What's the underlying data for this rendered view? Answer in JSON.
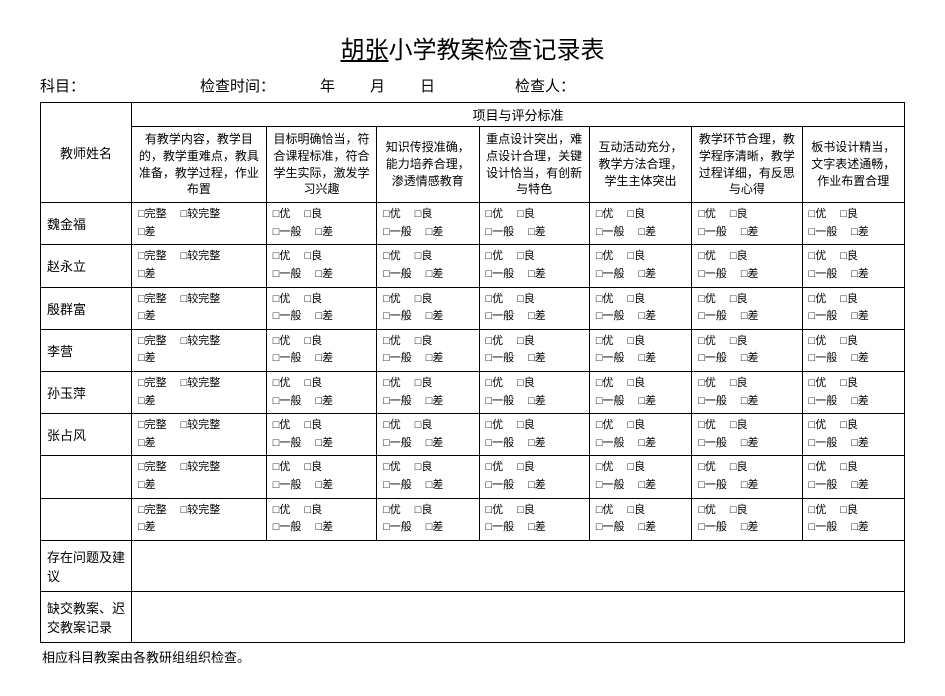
{
  "title_underlined": "胡张",
  "title_rest": "小学教案检查记录表",
  "header": {
    "subject_label": "科目：",
    "time_label": "检查时间：",
    "year_unit": "年",
    "month_unit": "月",
    "day_unit": "日",
    "inspector_label": "检查人："
  },
  "table": {
    "teacher_col_header": "教师姓名",
    "project_header": "项目与评分标准",
    "criteria": [
      "有教学内容，教学目的，教学重难点，教具准备，教学过程，作业布置",
      "目标明确恰当，符合课程标准，符合学生实际，激发学习兴趣",
      "知识传授准确，能力培养合理，渗透情感教育",
      "重点设计突出，难点设计合理，关键设计恰当，有创新与特色",
      "互动活动充分，教学方法合理，学生主体突出",
      "教学环节合理，教学程序清晰，教学过程详细，有反思与心得",
      "板书设计精当，文字表述通畅，作业布置合理"
    ],
    "teachers": [
      "魏金福",
      "赵永立",
      "殷群富",
      "李营",
      "孙玉萍",
      "张占风",
      "",
      ""
    ],
    "first_col_options": {
      "r1a": "□完整",
      "r1b": "□较完整",
      "r2a": "□差"
    },
    "other_col_options": {
      "r1a": "□优",
      "r1b": "□良",
      "r2a": "□一般",
      "r2b": "□差"
    },
    "footer_rows": [
      "存在问题及建议",
      "缺交教案、迟交教案记录"
    ]
  },
  "footnote": "相应科目教案由各教研组组织检查。",
  "colors": {
    "background": "#ffffff",
    "text": "#000000",
    "border": "#000000"
  }
}
